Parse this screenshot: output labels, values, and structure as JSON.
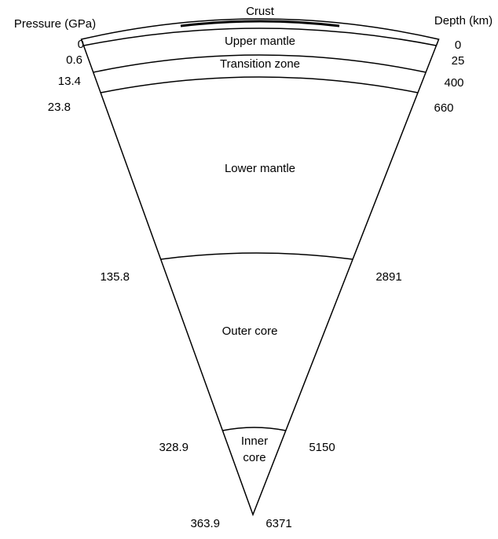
{
  "header": {
    "pressure": "Pressure (GPa)",
    "depth": "Depth (km)"
  },
  "layers": [
    {
      "name": "Crust"
    },
    {
      "name": "Upper mantle"
    },
    {
      "name": "Transition zone"
    },
    {
      "name": "Lower mantle"
    },
    {
      "name": "Outer core"
    },
    {
      "name_lines": [
        "Inner",
        "core"
      ]
    }
  ],
  "boundaries": [
    {
      "pressure": 0,
      "depth": 0
    },
    {
      "pressure": 0.6,
      "depth": 25
    },
    {
      "pressure": 13.4,
      "depth": 400
    },
    {
      "pressure": 23.8,
      "depth": 660
    },
    {
      "pressure": 135.8,
      "depth": 2891
    },
    {
      "pressure": 328.9,
      "depth": 5150
    },
    {
      "pressure": 363.9,
      "depth": 6371
    }
  ]
}
